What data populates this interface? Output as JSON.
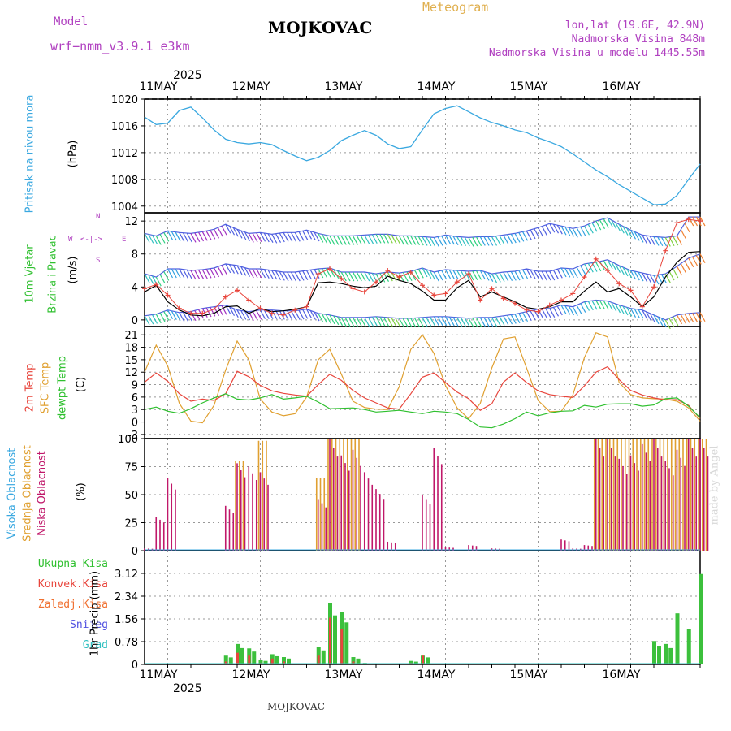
{
  "header": {
    "model_label": "Model",
    "model_name": "wrf−nmm_v3.9.1  e3km",
    "title": "MOJKOVAC",
    "product": "Meteogram",
    "lonlat": "lon,lat (19.6E, 42.9N)",
    "altitude": "Nadmorska Visina 848m",
    "model_altitude": "Nadmorska Visina u modelu 1445.55m"
  },
  "footer": {
    "station": "MOJKOVAC",
    "credit": "made by Angel"
  },
  "time_axis": {
    "year": "2025",
    "days": [
      "11MAY",
      "12MAY",
      "13MAY",
      "14MAY",
      "15MAY",
      "16MAY"
    ],
    "start_hour": -6,
    "end_hour": 138
  },
  "colors": {
    "pressure": "#3aa8e0",
    "temp2m": "#e8453c",
    "sfctemp": "#e0a030",
    "dewpoint": "#2fc02f",
    "cloud_high": "#3aa8e0",
    "cloud_mid": "#e0a030",
    "cloud_low": "#c0186a",
    "total_precip": "#3cc03c",
    "conv_precip": "#e8453c",
    "frz_precip": "#f07030",
    "snow": "#5050e0",
    "hail": "#30c0c0",
    "wind_black": "#000000",
    "wind_red": "#e8453c"
  },
  "chart_data": [
    {
      "type": "line",
      "name": "pressure",
      "ylabel_top": "Pritisak na nivou mora",
      "ylabel_unit": "(hPa)",
      "ylim": [
        1003,
        1020
      ],
      "yticks": [
        "1004",
        "1008",
        "1012",
        "1016",
        "1020"
      ],
      "x_hours": [
        -6,
        -3,
        0,
        3,
        6,
        9,
        12,
        15,
        18,
        21,
        24,
        27,
        30,
        33,
        36,
        39,
        42,
        45,
        48,
        51,
        54,
        57,
        60,
        63,
        66,
        69,
        72,
        75,
        78,
        81,
        84,
        87,
        90,
        93,
        96,
        99,
        102,
        105,
        108,
        111,
        114,
        117,
        120,
        123,
        126,
        129,
        132,
        135,
        138
      ],
      "series": [
        {
          "name": "MSLP",
          "values": [
            1017.3,
            1016.2,
            1016.4,
            1018.3,
            1018.8,
            1017.2,
            1015.4,
            1014.0,
            1013.5,
            1013.3,
            1013.5,
            1013.2,
            1012.3,
            1011.5,
            1010.8,
            1011.3,
            1012.3,
            1013.8,
            1014.6,
            1015.3,
            1014.6,
            1013.3,
            1012.6,
            1012.9,
            1015.4,
            1017.8,
            1018.6,
            1019.0,
            1018.1,
            1017.2,
            1016.5,
            1016.0,
            1015.4,
            1015.0,
            1014.2,
            1013.6,
            1012.9,
            1011.8,
            1010.6,
            1009.4,
            1008.4,
            1007.2,
            1006.2,
            1005.2,
            1004.2,
            1004.3,
            1005.6,
            1008.0,
            1010.3
          ]
        }
      ]
    },
    {
      "type": "line",
      "name": "wind",
      "ylabel_a": "10m Vjetar",
      "ylabel_b": "Brzina i Pravac",
      "ylabel_unit": "(m/s)",
      "compass": [
        "N",
        "W",
        "E",
        "S"
      ],
      "ylim": [
        -0.8,
        13
      ],
      "yticks": [
        "0",
        "4",
        "8",
        "12"
      ],
      "x_hours": [
        -6,
        -3,
        0,
        3,
        6,
        9,
        12,
        15,
        18,
        21,
        24,
        27,
        30,
        33,
        36,
        39,
        42,
        45,
        48,
        51,
        54,
        57,
        60,
        63,
        66,
        69,
        72,
        75,
        78,
        81,
        84,
        87,
        90,
        93,
        96,
        99,
        102,
        105,
        108,
        111,
        114,
        117,
        120,
        123,
        126,
        129,
        132,
        135,
        138
      ],
      "series": [
        {
          "name": "speed",
          "values": [
            3.4,
            4.2,
            2.2,
            1.2,
            0.6,
            0.5,
            0.8,
            1.6,
            1.7,
            0.8,
            1.4,
            1.0,
            1.1,
            1.3,
            1.6,
            4.5,
            4.6,
            4.4,
            4.1,
            3.9,
            4.1,
            5.3,
            4.8,
            4.4,
            3.5,
            2.4,
            2.4,
            3.9,
            4.8,
            2.8,
            3.4,
            2.8,
            2.2,
            1.5,
            1.3,
            1.6,
            2.2,
            2.2,
            3.5,
            4.6,
            3.4,
            3.8,
            2.8,
            1.6,
            2.8,
            5.2,
            7.0,
            8.2,
            8.3
          ]
        },
        {
          "name": "gust",
          "values": [
            3.8,
            4.3,
            3.0,
            1.4,
            0.8,
            0.8,
            1.3,
            2.8,
            3.6,
            2.4,
            1.4,
            0.8,
            0.6,
            1.2,
            1.6,
            5.6,
            6.2,
            5.0,
            3.8,
            3.4,
            4.6,
            6.0,
            5.2,
            5.8,
            4.2,
            3.0,
            3.2,
            4.6,
            5.6,
            2.4,
            3.8,
            2.6,
            2.0,
            1.2,
            1.0,
            1.8,
            2.4,
            3.2,
            5.2,
            7.4,
            6.0,
            4.4,
            3.6,
            1.6,
            4.0,
            8.4,
            11.8,
            12.2,
            12.0
          ]
        },
        {
          "name": "barb_row1",
          "values": [
            10.5,
            10.2,
            10.8,
            10.6,
            10.5,
            10.7,
            11.0,
            11.6,
            11.0,
            10.5,
            10.6,
            10.4,
            10.6,
            10.6,
            10.9,
            10.5,
            10.2,
            10.2,
            10.2,
            10.3,
            10.4,
            10.4,
            10.2,
            10.2,
            10.1,
            10.0,
            10.3,
            10.1,
            10.0,
            10.1,
            10.1,
            10.3,
            10.5,
            10.8,
            11.2,
            11.7,
            11.4,
            11.1,
            11.4,
            12.0,
            12.4,
            11.6,
            10.9,
            10.3,
            10.1,
            10.0,
            10.2,
            12.5,
            12.5
          ]
        },
        {
          "name": "barb_row2",
          "values": [
            5.6,
            5.2,
            6.2,
            6.2,
            6.0,
            6.1,
            6.3,
            6.8,
            6.6,
            6.2,
            6.2,
            6.0,
            5.8,
            5.8,
            6.0,
            6.2,
            6.3,
            5.8,
            5.8,
            5.8,
            5.6,
            5.8,
            5.7,
            5.9,
            6.3,
            5.8,
            6.1,
            6.0,
            5.9,
            6.0,
            5.6,
            5.8,
            5.9,
            6.2,
            5.9,
            5.9,
            6.3,
            6.2,
            6.8,
            7.0,
            7.3,
            6.6,
            6.0,
            5.7,
            5.4,
            5.6,
            6.5,
            7.5,
            8.0
          ]
        },
        {
          "name": "barb_row3",
          "values": [
            0.5,
            0.7,
            1.2,
            0.9,
            1.0,
            1.4,
            1.6,
            1.8,
            1.2,
            1.0,
            1.2,
            1.2,
            1.1,
            1.1,
            1.3,
            0.8,
            0.6,
            0.3,
            0.3,
            0.3,
            0.4,
            0.3,
            0.2,
            0.2,
            0.3,
            0.4,
            0.4,
            0.3,
            0.2,
            0.3,
            0.3,
            0.5,
            0.7,
            1.0,
            1.3,
            1.4,
            1.8,
            1.6,
            2.2,
            2.4,
            2.3,
            1.8,
            1.4,
            1.2,
            0.6,
            0.0,
            0.6,
            0.8,
            0.9
          ]
        }
      ]
    },
    {
      "type": "line",
      "name": "temperature",
      "ylabel_a": "2m Temp",
      "ylabel_b": "SFC Temp",
      "ylabel_c": "dewpt Temp",
      "ylabel_unit": "(C)",
      "ylim": [
        -4,
        23
      ],
      "yticks": [
        "-3",
        "0",
        "3",
        "6",
        "9",
        "12",
        "15",
        "18",
        "21"
      ],
      "x_hours": [
        -6,
        -3,
        0,
        3,
        6,
        9,
        12,
        15,
        18,
        21,
        24,
        27,
        30,
        33,
        36,
        39,
        42,
        45,
        48,
        51,
        54,
        57,
        60,
        63,
        66,
        69,
        72,
        75,
        78,
        81,
        84,
        87,
        90,
        93,
        96,
        99,
        102,
        105,
        108,
        111,
        114,
        117,
        120,
        123,
        126,
        129,
        132,
        135,
        138
      ],
      "series": [
        {
          "name": "2m Temp",
          "values": [
            9.6,
            11.8,
            9.8,
            6.8,
            5.0,
            5.5,
            5.2,
            6.8,
            12.2,
            10.9,
            8.8,
            7.5,
            6.9,
            6.5,
            6.2,
            9.0,
            11.5,
            10.0,
            7.6,
            5.8,
            4.6,
            3.4,
            3.1,
            6.8,
            10.8,
            11.8,
            9.5,
            7.2,
            5.6,
            2.8,
            4.4,
            9.6,
            11.8,
            9.5,
            7.5,
            6.6,
            6.2,
            5.9,
            8.7,
            12.0,
            13.3,
            10.2,
            7.6,
            6.5,
            5.8,
            5.3,
            5.4,
            4.0,
            0.8
          ]
        },
        {
          "name": "SFC Temp",
          "values": [
            12.0,
            18.5,
            13.5,
            4.5,
            0.2,
            -0.2,
            4.0,
            12.5,
            19.5,
            15.0,
            5.5,
            2.4,
            1.5,
            2.0,
            6.0,
            15.0,
            17.5,
            11.5,
            5.0,
            3.5,
            3.1,
            3.0,
            8.5,
            17.5,
            21.0,
            16.5,
            8.8,
            3.4,
            0.8,
            4.5,
            13.0,
            20.0,
            20.5,
            13.0,
            5.2,
            2.5,
            2.6,
            6.5,
            15.5,
            21.5,
            20.5,
            9.5,
            6.6,
            5.8,
            5.6,
            5.5,
            5.0,
            3.4,
            0.2
          ]
        },
        {
          "name": "dewpt Temp",
          "values": [
            3.0,
            3.6,
            2.6,
            2.1,
            3.2,
            4.6,
            5.8,
            6.8,
            5.5,
            5.3,
            5.8,
            6.6,
            5.5,
            5.8,
            6.2,
            4.8,
            3.2,
            3.3,
            3.4,
            3.0,
            2.4,
            2.6,
            2.8,
            2.4,
            2.0,
            2.6,
            2.4,
            2.0,
            0.6,
            -1.2,
            -1.4,
            -0.5,
            0.8,
            2.4,
            1.5,
            2.2,
            2.6,
            2.7,
            4.0,
            3.6,
            4.3,
            4.4,
            4.4,
            3.8,
            4.1,
            5.6,
            5.8,
            3.8,
            1.0
          ]
        }
      ]
    },
    {
      "type": "bar",
      "name": "clouds",
      "ylabel_a": "Visoka Oblacnost",
      "ylabel_b": "Srednja Oblacnost",
      "ylabel_c": "Niska Oblacnost",
      "ylabel_unit": "(%)",
      "ylim": [
        0,
        100
      ],
      "yticks": [
        "0",
        "25",
        "50",
        "75",
        "100"
      ],
      "x_hours": [
        -6,
        -3,
        0,
        3,
        6,
        9,
        12,
        15,
        18,
        21,
        24,
        27,
        30,
        33,
        36,
        39,
        42,
        45,
        48,
        51,
        54,
        57,
        60,
        63,
        66,
        69,
        72,
        75,
        78,
        81,
        84,
        87,
        90,
        93,
        96,
        99,
        102,
        105,
        108,
        111,
        114,
        117,
        120,
        123,
        126,
        129,
        132,
        135,
        138
      ],
      "series": [
        {
          "name": "Visoka Oblacnost",
          "values": [
            0,
            0,
            0,
            0,
            0,
            0,
            0,
            0,
            0,
            0,
            0,
            0,
            0,
            0,
            0,
            0,
            0,
            0,
            0,
            0,
            0,
            0,
            0,
            0,
            0,
            0,
            0,
            0,
            0,
            0,
            0,
            0,
            0,
            0,
            0,
            0,
            0,
            0,
            0,
            0,
            0,
            0,
            0,
            0,
            0,
            0,
            0,
            0,
            0
          ]
        },
        {
          "name": "Srednja Oblacnost",
          "values": [
            0,
            0,
            0,
            0,
            0,
            0,
            0,
            0,
            80,
            0,
            98,
            0,
            0,
            0,
            0,
            65,
            100,
            100,
            100,
            0,
            0,
            0,
            0,
            0,
            0,
            0,
            0,
            0,
            0,
            0,
            0,
            0,
            0,
            0,
            0,
            0,
            0,
            0,
            0,
            100,
            100,
            100,
            100,
            100,
            100,
            100,
            100,
            100,
            100
          ]
        },
        {
          "name": "Niska Oblacnost",
          "values": [
            2,
            30,
            65,
            0,
            0,
            0,
            0,
            40,
            78,
            75,
            70,
            0,
            0,
            0,
            0,
            46,
            100,
            85,
            90,
            70,
            55,
            8,
            0,
            0,
            50,
            92,
            3,
            0,
            5,
            0,
            2,
            0,
            0,
            0,
            0,
            0,
            10,
            2,
            5,
            100,
            100,
            82,
            85,
            95,
            100,
            80,
            90,
            100,
            100
          ]
        }
      ]
    },
    {
      "type": "bar",
      "name": "precipitation",
      "legend": [
        "Ukupna  Kisa",
        "Konvek.Kisa",
        "Zaledj.Kisa",
        "Snijeg",
        "Grad"
      ],
      "ylabel_unit": "1hr Precip (mm)",
      "ylim": [
        0,
        3.9
      ],
      "yticks": [
        "0",
        "0.78",
        "1.56",
        "2.34",
        "3.12"
      ],
      "x_hours": [
        -6,
        -3,
        0,
        3,
        6,
        9,
        12,
        15,
        18,
        21,
        24,
        27,
        30,
        33,
        36,
        39,
        42,
        45,
        48,
        51,
        54,
        57,
        60,
        63,
        66,
        69,
        72,
        75,
        78,
        81,
        84,
        87,
        90,
        93,
        96,
        99,
        102,
        105,
        108,
        111,
        114,
        117,
        120,
        123,
        126,
        129,
        132,
        135,
        138
      ],
      "series": [
        {
          "name": "Ukupna Kisa",
          "values": [
            0,
            0,
            0,
            0,
            0,
            0,
            0,
            0.3,
            0.7,
            0.55,
            0.15,
            0.35,
            0.25,
            0,
            0,
            0.6,
            2.1,
            1.8,
            0.25,
            0.05,
            0,
            0,
            0,
            0.12,
            0.3,
            0,
            0,
            0,
            0,
            0,
            0,
            0,
            0,
            0,
            0,
            0,
            0,
            0,
            0,
            0,
            0,
            0,
            0,
            0,
            0.8,
            0.7,
            1.75,
            1.2,
            3.1
          ]
        },
        {
          "name": "Konvek.Kisa",
          "values": [
            0,
            0,
            0,
            0,
            0,
            0,
            0,
            0.1,
            0.4,
            0.3,
            0.05,
            0.2,
            0.1,
            0,
            0,
            0.3,
            1.6,
            1.2,
            0.1,
            0,
            0,
            0,
            0,
            0.05,
            0.3,
            0,
            0,
            0,
            0,
            0,
            0,
            0,
            0,
            0,
            0,
            0,
            0,
            0,
            0,
            0,
            0,
            0,
            0,
            0,
            0,
            0,
            0,
            0,
            0
          ]
        }
      ]
    }
  ]
}
